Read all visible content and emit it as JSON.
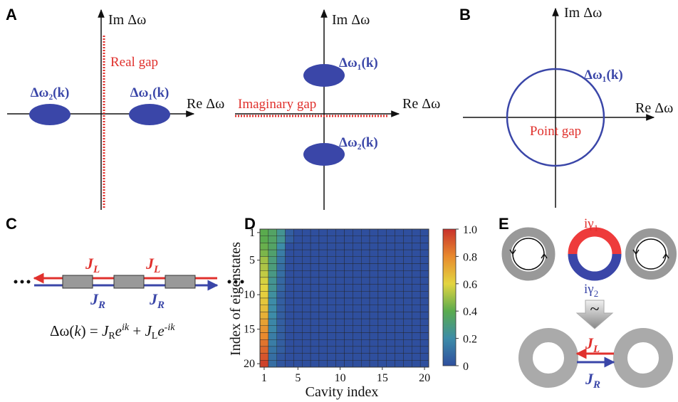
{
  "panel_a": {
    "label": "A",
    "left": {
      "im_axis": "Im Δω",
      "re_axis": "Re Δω",
      "gap": "Real gap",
      "band_2": "Δω₂(k)",
      "band_1": "Δω₁(k)"
    },
    "right": {
      "im_axis": "Im Δω",
      "re_axis": "Re Δω",
      "gap": "Imaginary gap",
      "band_1": "Δω₁(k)",
      "band_2": "Δω₂(k)"
    }
  },
  "panel_b": {
    "label": "B",
    "im_axis": "Im Δω",
    "re_axis": "Re Δω",
    "band_1": "Δω₁(k)",
    "gap": "Point gap"
  },
  "panel_c": {
    "label": "C",
    "coupling_left": {
      "symbol": "J",
      "sub": "L"
    },
    "coupling_right": {
      "symbol": "J",
      "sub": "R"
    },
    "equation": [
      "Δω(",
      "k",
      ") = ",
      "J",
      "R",
      "e",
      "ik",
      " + ",
      "J",
      "L",
      "e",
      "-ik"
    ]
  },
  "panel_e": {
    "label": "E",
    "gain_loss_1": {
      "symbol": "iγ",
      "sub": "1"
    },
    "gain_loss_2": {
      "symbol": "iγ",
      "sub": "2"
    },
    "equivalence": "~",
    "coupling_left": {
      "symbol": "J",
      "sub": "L"
    },
    "coupling_right": {
      "symbol": "J",
      "sub": "R"
    }
  },
  "chart_data": {
    "type": "heatmap",
    "panel_label": "D",
    "x_label": "Cavity index",
    "y_label": "Index of eigenstates",
    "x": [
      1,
      2,
      3,
      4,
      5,
      6,
      7,
      8,
      9,
      10,
      11,
      12,
      13,
      14,
      15,
      16,
      17,
      18,
      19,
      20
    ],
    "y": [
      1,
      2,
      3,
      4,
      5,
      6,
      7,
      8,
      9,
      10,
      11,
      12,
      13,
      14,
      15,
      16,
      17,
      18,
      19,
      20
    ],
    "xlim": [
      0.5,
      20.5
    ],
    "ylim": [
      0.5,
      20.5
    ],
    "y_reversed": true,
    "xticks": [
      1,
      5,
      10,
      15,
      20
    ],
    "yticks": [
      1,
      5,
      10,
      15,
      20
    ],
    "colormap": [
      "#2f4f9e",
      "#3d8ca8",
      "#5aab4e",
      "#e3d540",
      "#e88a2e",
      "#c8312c"
    ],
    "colorbar": {
      "lim": [
        0,
        1
      ],
      "ticks": [
        0,
        0.2,
        0.4,
        0.6,
        0.8,
        {
          "value": 1,
          "label": "1.0"
        }
      ]
    },
    "values": [
      [
        0.4,
        0.35,
        0.25,
        0.05,
        0,
        0,
        0,
        0,
        0,
        0,
        0,
        0,
        0,
        0,
        0,
        0,
        0,
        0,
        0,
        0
      ],
      [
        0.4,
        0.35,
        0.25,
        0.05,
        0,
        0,
        0,
        0,
        0,
        0,
        0,
        0,
        0,
        0,
        0,
        0,
        0,
        0,
        0,
        0
      ],
      [
        0.42,
        0.35,
        0.2,
        0,
        0,
        0,
        0,
        0,
        0,
        0,
        0,
        0,
        0,
        0,
        0,
        0,
        0,
        0,
        0,
        0
      ],
      [
        0.45,
        0.33,
        0.15,
        0,
        0,
        0,
        0,
        0,
        0,
        0,
        0,
        0,
        0,
        0,
        0,
        0,
        0,
        0,
        0,
        0
      ],
      [
        0.5,
        0.3,
        0.12,
        0,
        0,
        0,
        0,
        0,
        0,
        0,
        0,
        0,
        0,
        0,
        0,
        0,
        0,
        0,
        0,
        0
      ],
      [
        0.52,
        0.3,
        0.1,
        0,
        0,
        0,
        0,
        0,
        0,
        0,
        0,
        0,
        0,
        0,
        0,
        0,
        0,
        0,
        0,
        0
      ],
      [
        0.55,
        0.28,
        0.1,
        0,
        0,
        0,
        0,
        0,
        0,
        0,
        0,
        0,
        0,
        0,
        0,
        0,
        0,
        0,
        0,
        0
      ],
      [
        0.58,
        0.25,
        0.08,
        0,
        0,
        0,
        0,
        0,
        0,
        0,
        0,
        0,
        0,
        0,
        0,
        0,
        0,
        0,
        0,
        0
      ],
      [
        0.6,
        0.25,
        0.08,
        0,
        0,
        0,
        0,
        0,
        0,
        0,
        0,
        0,
        0,
        0,
        0,
        0,
        0,
        0,
        0,
        0
      ],
      [
        0.62,
        0.22,
        0.05,
        0,
        0,
        0,
        0,
        0,
        0,
        0,
        0,
        0,
        0,
        0,
        0,
        0,
        0,
        0,
        0,
        0
      ],
      [
        0.64,
        0.2,
        0.05,
        0,
        0,
        0,
        0,
        0,
        0,
        0,
        0,
        0,
        0,
        0,
        0,
        0,
        0,
        0,
        0,
        0
      ],
      [
        0.66,
        0.2,
        0.05,
        0,
        0,
        0,
        0,
        0,
        0,
        0,
        0,
        0,
        0,
        0,
        0,
        0,
        0,
        0,
        0,
        0
      ],
      [
        0.7,
        0.2,
        0.05,
        0,
        0,
        0,
        0,
        0,
        0,
        0,
        0,
        0,
        0,
        0,
        0,
        0,
        0,
        0,
        0,
        0
      ],
      [
        0.74,
        0.18,
        0.05,
        0,
        0,
        0,
        0,
        0,
        0,
        0,
        0,
        0,
        0,
        0,
        0,
        0,
        0,
        0,
        0,
        0
      ],
      [
        0.77,
        0.18,
        0.05,
        0,
        0,
        0,
        0,
        0,
        0,
        0,
        0,
        0,
        0,
        0,
        0,
        0,
        0,
        0,
        0,
        0
      ],
      [
        0.8,
        0.15,
        0.05,
        0,
        0,
        0,
        0,
        0,
        0,
        0,
        0,
        0,
        0,
        0,
        0,
        0,
        0,
        0,
        0,
        0
      ],
      [
        0.85,
        0.15,
        0.05,
        0,
        0,
        0,
        0,
        0,
        0,
        0,
        0,
        0,
        0,
        0,
        0,
        0,
        0,
        0,
        0,
        0
      ],
      [
        0.88,
        0.12,
        0.05,
        0,
        0,
        0,
        0,
        0,
        0,
        0,
        0,
        0,
        0,
        0,
        0,
        0,
        0,
        0,
        0,
        0
      ],
      [
        0.92,
        0.1,
        0.02,
        0,
        0,
        0,
        0,
        0,
        0,
        0,
        0,
        0,
        0,
        0,
        0,
        0,
        0,
        0,
        0,
        0
      ],
      [
        0.96,
        0.1,
        0.02,
        0,
        0,
        0,
        0,
        0,
        0,
        0,
        0,
        0,
        0,
        0,
        0,
        0,
        0,
        0,
        0,
        0
      ]
    ]
  }
}
